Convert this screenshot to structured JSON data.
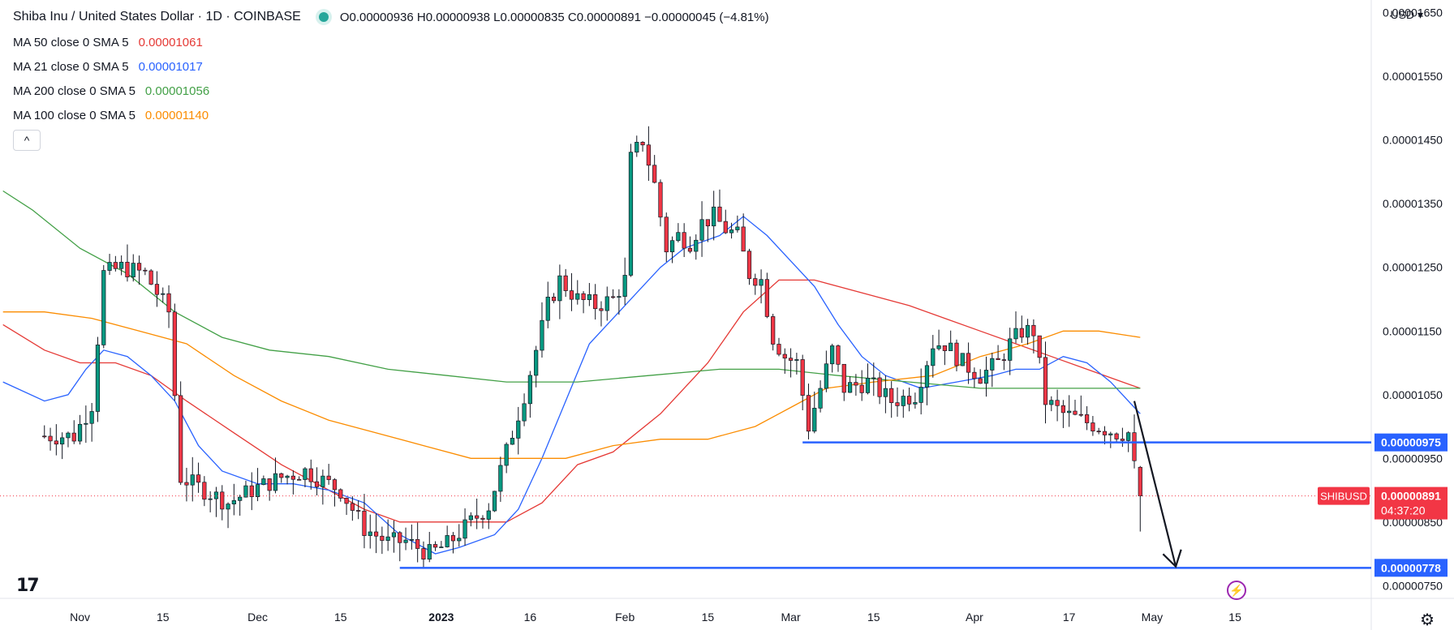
{
  "header": {
    "title": "Shiba Inu / United States Dollar · 1D · COINBASE",
    "ohlc": "O0.00000936 H0.00000938 L0.00000835 C0.00000891 −0.00000045 (−4.81%)",
    "status_color": "#26a69a"
  },
  "indicators": [
    {
      "label": "MA 50 close 0 SMA 5",
      "value": "0.00001061",
      "color": "#e53935"
    },
    {
      "label": "MA 21 close 0 SMA 5",
      "value": "0.00001017",
      "color": "#2962ff"
    },
    {
      "label": "MA 200 close 0 SMA 5",
      "value": "0.00001056",
      "color": "#43a047"
    },
    {
      "label": "MA 100 close 0 SMA 5",
      "value": "0.00001140",
      "color": "#fb8c00"
    }
  ],
  "controls": {
    "collapse_icon": "chevron-up-icon",
    "collapse_glyph": "^",
    "currency": "USD",
    "logo_text": "17",
    "settings_icon": "gear-icon",
    "event_icon": "lightning-icon"
  },
  "chart_data": {
    "type": "candlestick",
    "symbol": "SHIBUSD",
    "y_ticks": [
      "0.00001650",
      "0.00001550",
      "0.00001450",
      "0.00001350",
      "0.00001250",
      "0.00001150",
      "0.00001050",
      "0.00000950",
      "0.00000850",
      "0.00000750"
    ],
    "y_range": [
      7.3e-06,
      1.67e-05
    ],
    "x_ticks": [
      {
        "label": "Nov",
        "day": 6
      },
      {
        "label": "15",
        "day": 20
      },
      {
        "label": "Dec",
        "day": 36
      },
      {
        "label": "15",
        "day": 50
      },
      {
        "label": "2023",
        "day": 67
      },
      {
        "label": "16",
        "day": 82
      },
      {
        "label": "Feb",
        "day": 98
      },
      {
        "label": "15",
        "day": 112
      },
      {
        "label": "Mar",
        "day": 126
      },
      {
        "label": "15",
        "day": 140
      },
      {
        "label": "Apr",
        "day": 157
      },
      {
        "label": "17",
        "day": 173
      },
      {
        "label": "May",
        "day": 187
      },
      {
        "label": "15",
        "day": 201
      }
    ],
    "x_range": [
      -7.5,
      224
    ],
    "current_price": {
      "label": "SHIBUSD",
      "value": "0.00000891",
      "countdown": "04:37:20",
      "price": 8.91e-06,
      "color": "#f23645"
    },
    "horizontal_levels": [
      {
        "label": "0.00000975",
        "price": 9.75e-06,
        "from_day": 128,
        "color": "#2962ff"
      },
      {
        "label": "0.00000778",
        "price": 7.78e-06,
        "from_day": 60,
        "color": "#2962ff"
      }
    ],
    "arrow": {
      "from_day": 184,
      "from_price": 1.04e-05,
      "to_day": 191,
      "to_price": 7.8e-06
    },
    "colors": {
      "up": "#089981",
      "down": "#f23645"
    },
    "anchors": [
      [
        0,
        9.85e-06
      ],
      [
        5,
        9.85e-06
      ],
      [
        8,
        1.035e-05
      ],
      [
        10,
        1.24e-05
      ],
      [
        13,
        1.25e-05
      ],
      [
        17,
        1.24e-05
      ],
      [
        21,
        1.18e-05
      ],
      [
        23,
        9.2e-06
      ],
      [
        27,
        9e-06
      ],
      [
        31,
        8.8e-06
      ],
      [
        35,
        9e-06
      ],
      [
        40,
        9.2e-06
      ],
      [
        44,
        9.3e-06
      ],
      [
        50,
        9e-06
      ],
      [
        54,
        8.4e-06
      ],
      [
        58,
        8.18e-06
      ],
      [
        61,
        8.2e-06
      ],
      [
        65,
        8e-06
      ],
      [
        68,
        8.15e-06
      ],
      [
        72,
        8.5e-06
      ],
      [
        75,
        8.75e-06
      ],
      [
        78,
        9.6e-06
      ],
      [
        81,
        1.05e-05
      ],
      [
        83,
        1.12e-05
      ],
      [
        85,
        1.19e-05
      ],
      [
        87,
        1.23e-05
      ],
      [
        90,
        1.2e-05
      ],
      [
        93,
        1.19e-05
      ],
      [
        96,
        1.2e-05
      ],
      [
        98,
        1.23e-05
      ],
      [
        99,
        1.42e-05
      ],
      [
        101,
        1.45e-05
      ],
      [
        103,
        1.38e-05
      ],
      [
        105,
        1.28e-05
      ],
      [
        107,
        1.3e-05
      ],
      [
        109,
        1.29e-05
      ],
      [
        111,
        1.32e-05
      ],
      [
        113,
        1.33e-05
      ],
      [
        115,
        1.31e-05
      ],
      [
        117,
        1.3e-05
      ],
      [
        119,
        1.24e-05
      ],
      [
        121,
        1.23e-05
      ],
      [
        123,
        1.14e-05
      ],
      [
        125,
        1.11e-05
      ],
      [
        127,
        1.1e-05
      ],
      [
        129,
        1e-05
      ],
      [
        131,
        1.06e-05
      ],
      [
        133,
        1.12e-05
      ],
      [
        135,
        1.06e-05
      ],
      [
        139,
        1.07e-05
      ],
      [
        143,
        1.04e-05
      ],
      [
        147,
        1.05e-05
      ],
      [
        150,
        1.13e-05
      ],
      [
        152,
        1.13e-05
      ],
      [
        155,
        1.1e-05
      ],
      [
        158,
        1.08e-05
      ],
      [
        161,
        1.1e-05
      ],
      [
        163,
        1.13e-05
      ],
      [
        165,
        1.15e-05
      ],
      [
        167,
        1.15e-05
      ],
      [
        169,
        1.04e-05
      ],
      [
        172,
        1.02e-05
      ],
      [
        175,
        1.01e-05
      ],
      [
        178,
        1e-05
      ],
      [
        181,
        9.9e-06
      ],
      [
        183,
        9.9e-06
      ],
      [
        184,
        9.36e-06
      ],
      [
        185,
        8.91e-06
      ]
    ],
    "moving_averages": [
      {
        "name": "MA 50",
        "color": "#e53935",
        "points": [
          [
            -7,
            1.16e-05
          ],
          [
            0,
            1.12e-05
          ],
          [
            6,
            1.1e-05
          ],
          [
            12,
            1.1e-05
          ],
          [
            18,
            1.08e-05
          ],
          [
            24,
            1.04e-05
          ],
          [
            32,
            9.9e-06
          ],
          [
            40,
            9.4e-06
          ],
          [
            48,
            9e-06
          ],
          [
            54,
            8.7e-06
          ],
          [
            60,
            8.5e-06
          ],
          [
            66,
            8.5e-06
          ],
          [
            72,
            8.5e-06
          ],
          [
            78,
            8.5e-06
          ],
          [
            84,
            8.8e-06
          ],
          [
            90,
            9.4e-06
          ],
          [
            96,
            9.6e-06
          ],
          [
            104,
            1.02e-05
          ],
          [
            112,
            1.1e-05
          ],
          [
            118,
            1.18e-05
          ],
          [
            124,
            1.23e-05
          ],
          [
            130,
            1.23e-05
          ],
          [
            138,
            1.21e-05
          ],
          [
            146,
            1.19e-05
          ],
          [
            152,
            1.17e-05
          ],
          [
            158,
            1.15e-05
          ],
          [
            164,
            1.13e-05
          ],
          [
            170,
            1.11e-05
          ],
          [
            176,
            1.09e-05
          ],
          [
            182,
            1.07e-05
          ],
          [
            185,
            1.06e-05
          ]
        ]
      },
      {
        "name": "MA 21",
        "color": "#2962ff",
        "points": [
          [
            -7,
            1.07e-05
          ],
          [
            0,
            1.04e-05
          ],
          [
            4,
            1.05e-05
          ],
          [
            7,
            1.09e-05
          ],
          [
            10,
            1.12e-05
          ],
          [
            14,
            1.11e-05
          ],
          [
            18,
            1.08e-05
          ],
          [
            22,
            1.04e-05
          ],
          [
            26,
            9.7e-06
          ],
          [
            30,
            9.3e-06
          ],
          [
            36,
            9.1e-06
          ],
          [
            42,
            9.1e-06
          ],
          [
            48,
            9e-06
          ],
          [
            54,
            8.8e-06
          ],
          [
            60,
            8.3e-06
          ],
          [
            66,
            8e-06
          ],
          [
            70,
            8.1e-06
          ],
          [
            76,
            8.3e-06
          ],
          [
            80,
            8.7e-06
          ],
          [
            84,
            9.5e-06
          ],
          [
            88,
            1.04e-05
          ],
          [
            92,
            1.13e-05
          ],
          [
            96,
            1.17e-05
          ],
          [
            100,
            1.21e-05
          ],
          [
            104,
            1.25e-05
          ],
          [
            108,
            1.28e-05
          ],
          [
            114,
            1.3e-05
          ],
          [
            118,
            1.33e-05
          ],
          [
            122,
            1.3e-05
          ],
          [
            126,
            1.26e-05
          ],
          [
            130,
            1.22e-05
          ],
          [
            134,
            1.16e-05
          ],
          [
            138,
            1.11e-05
          ],
          [
            142,
            1.08e-05
          ],
          [
            148,
            1.06e-05
          ],
          [
            154,
            1.07e-05
          ],
          [
            160,
            1.08e-05
          ],
          [
            164,
            1.09e-05
          ],
          [
            168,
            1.09e-05
          ],
          [
            172,
            1.11e-05
          ],
          [
            176,
            1.1e-05
          ],
          [
            180,
            1.07e-05
          ],
          [
            184,
            1.03e-05
          ],
          [
            185,
            1.02e-05
          ]
        ]
      },
      {
        "name": "MA 200",
        "color": "#43a047",
        "points": [
          [
            -7,
            1.37e-05
          ],
          [
            -2,
            1.34e-05
          ],
          [
            6,
            1.28e-05
          ],
          [
            14,
            1.24e-05
          ],
          [
            22,
            1.18e-05
          ],
          [
            30,
            1.14e-05
          ],
          [
            38,
            1.12e-05
          ],
          [
            48,
            1.11e-05
          ],
          [
            58,
            1.09e-05
          ],
          [
            68,
            1.08e-05
          ],
          [
            78,
            1.07e-05
          ],
          [
            90,
            1.07e-05
          ],
          [
            102,
            1.08e-05
          ],
          [
            114,
            1.09e-05
          ],
          [
            124,
            1.09e-05
          ],
          [
            134,
            1.08e-05
          ],
          [
            146,
            1.07e-05
          ],
          [
            158,
            1.06e-05
          ],
          [
            170,
            1.06e-05
          ],
          [
            180,
            1.06e-05
          ],
          [
            185,
            1.06e-05
          ]
        ]
      },
      {
        "name": "MA 100",
        "color": "#fb8c00",
        "points": [
          [
            -7,
            1.18e-05
          ],
          [
            0,
            1.18e-05
          ],
          [
            8,
            1.17e-05
          ],
          [
            16,
            1.15e-05
          ],
          [
            24,
            1.13e-05
          ],
          [
            32,
            1.08e-05
          ],
          [
            40,
            1.04e-05
          ],
          [
            48,
            1.01e-05
          ],
          [
            56,
            9.9e-06
          ],
          [
            64,
            9.7e-06
          ],
          [
            72,
            9.5e-06
          ],
          [
            80,
            9.5e-06
          ],
          [
            88,
            9.5e-06
          ],
          [
            96,
            9.7e-06
          ],
          [
            104,
            9.8e-06
          ],
          [
            112,
            9.8e-06
          ],
          [
            120,
            1e-05
          ],
          [
            126,
            1.03e-05
          ],
          [
            132,
            1.06e-05
          ],
          [
            140,
            1.07e-05
          ],
          [
            150,
            1.08e-05
          ],
          [
            158,
            1.11e-05
          ],
          [
            166,
            1.13e-05
          ],
          [
            172,
            1.15e-05
          ],
          [
            178,
            1.15e-05
          ],
          [
            185,
            1.14e-05
          ]
        ]
      }
    ]
  }
}
